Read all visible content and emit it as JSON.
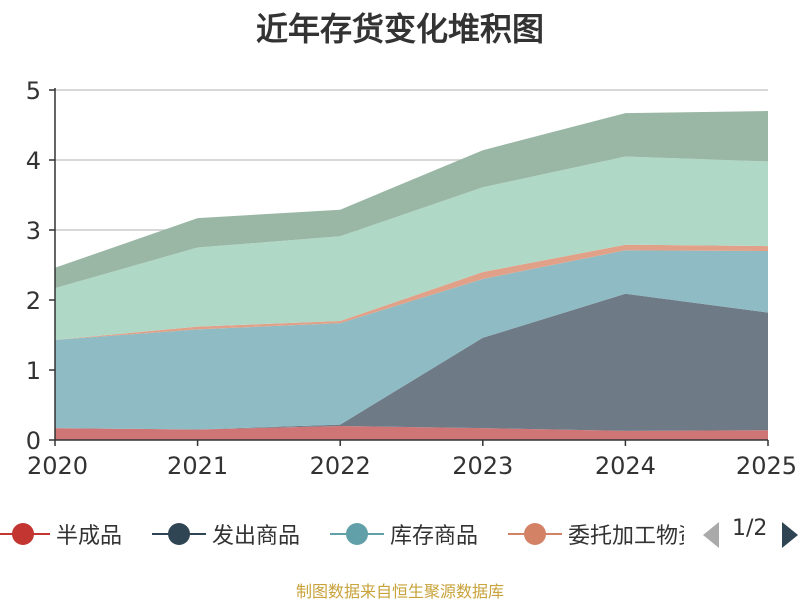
{
  "chart_data": {
    "type": "area",
    "stacked": true,
    "title": "近年存货变化堆积图",
    "ylabel": "",
    "xlabel": "",
    "x": [
      "2020",
      "2021",
      "2022",
      "2023",
      "2024",
      "2025"
    ],
    "ylim": [
      0,
      5
    ],
    "yticks": [
      "0",
      "1",
      "2",
      "3",
      "4",
      "5"
    ],
    "grid": true,
    "legend_position": "bottom",
    "series": [
      {
        "name": "半成品",
        "values": [
          0.17,
          0.15,
          0.2,
          0.17,
          0.13,
          0.14
        ],
        "color": "#d07575",
        "legend_color": "#c23531"
      },
      {
        "name": "发出商品",
        "values": [
          0.0,
          0.0,
          0.02,
          1.29,
          1.96,
          1.68
        ],
        "color": "#6e7b87",
        "legend_color": "#2f4554"
      },
      {
        "name": "库存商品",
        "values": [
          1.26,
          1.43,
          1.45,
          0.84,
          0.62,
          0.88
        ],
        "color": "#8fbbc4",
        "legend_color": "#61a0a8"
      },
      {
        "name": "委托加工物资",
        "values": [
          0.0,
          0.04,
          0.03,
          0.1,
          0.08,
          0.07
        ],
        "color": "#e0a188",
        "legend_color": "#d48265"
      },
      {
        "name": "",
        "values": [
          0.74,
          1.13,
          1.21,
          1.21,
          1.26,
          1.21
        ],
        "color": "#b0d8c6"
      },
      {
        "name": "",
        "values": [
          0.29,
          0.42,
          0.38,
          0.53,
          0.62,
          0.72
        ],
        "color": "#9ab7a5"
      }
    ]
  },
  "legend": {
    "visible_count": 4,
    "page": "1/2"
  },
  "source": "制图数据来自恒生聚源数据库"
}
